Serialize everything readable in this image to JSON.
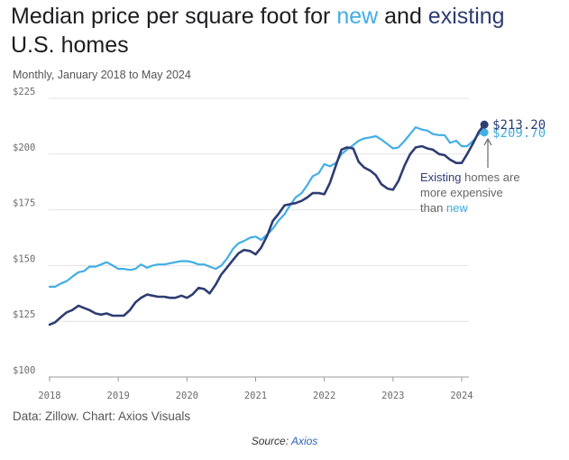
{
  "chart_data": {
    "type": "line",
    "title_parts": [
      "Median price per square foot for ",
      "new",
      " and ",
      "existing",
      " U.S. homes"
    ],
    "subtitle": "Monthly, January 2018 to May 2024",
    "ylim": [
      100,
      225
    ],
    "yticks": [
      100,
      125,
      150,
      175,
      200,
      225
    ],
    "ytick_labels": [
      "$100",
      "$125",
      "$150",
      "$175",
      "$200",
      "$225"
    ],
    "xlim": [
      2018,
      2024.6
    ],
    "xticks": [
      2018,
      2019,
      2020,
      2021,
      2022,
      2023,
      2024
    ],
    "xtick_labels": [
      "2018",
      "2019",
      "2020",
      "2021",
      "2022",
      "2023",
      "2024"
    ],
    "grid": true,
    "series": [
      {
        "name": "new",
        "color": "#42aee5",
        "end_label": "$209.70",
        "points": [
          [
            2018.0,
            140.5
          ],
          [
            2018.08,
            140.5
          ],
          [
            2018.17,
            142
          ],
          [
            2018.25,
            143
          ],
          [
            2018.33,
            145
          ],
          [
            2018.42,
            147
          ],
          [
            2018.5,
            147.5
          ],
          [
            2018.58,
            149.5
          ],
          [
            2018.67,
            149.5
          ],
          [
            2018.75,
            150.5
          ],
          [
            2018.83,
            151.5
          ],
          [
            2018.92,
            150
          ],
          [
            2019.0,
            148.5
          ],
          [
            2019.08,
            148.5
          ],
          [
            2019.17,
            148
          ],
          [
            2019.25,
            148.5
          ],
          [
            2019.33,
            150.5
          ],
          [
            2019.42,
            149
          ],
          [
            2019.5,
            150
          ],
          [
            2019.58,
            150.5
          ],
          [
            2019.67,
            150.5
          ],
          [
            2019.75,
            151
          ],
          [
            2019.83,
            151.5
          ],
          [
            2019.92,
            152
          ],
          [
            2020.0,
            152
          ],
          [
            2020.08,
            151.5
          ],
          [
            2020.17,
            150.5
          ],
          [
            2020.25,
            150.5
          ],
          [
            2020.33,
            149.5
          ],
          [
            2020.42,
            148.5
          ],
          [
            2020.5,
            150
          ],
          [
            2020.58,
            153
          ],
          [
            2020.67,
            157.5
          ],
          [
            2020.75,
            160
          ],
          [
            2020.83,
            161
          ],
          [
            2020.92,
            162.5
          ],
          [
            2021.0,
            163
          ],
          [
            2021.08,
            161.5
          ],
          [
            2021.17,
            164
          ],
          [
            2021.25,
            166.5
          ],
          [
            2021.33,
            170
          ],
          [
            2021.42,
            173
          ],
          [
            2021.5,
            177
          ],
          [
            2021.58,
            180.5
          ],
          [
            2021.67,
            182.5
          ],
          [
            2021.75,
            186
          ],
          [
            2021.83,
            190
          ],
          [
            2021.92,
            191.5
          ],
          [
            2022.0,
            195.5
          ],
          [
            2022.08,
            194.5
          ],
          [
            2022.17,
            196
          ],
          [
            2022.25,
            200
          ],
          [
            2022.33,
            202
          ],
          [
            2022.42,
            204
          ],
          [
            2022.5,
            206
          ],
          [
            2022.58,
            207
          ],
          [
            2022.67,
            207.5
          ],
          [
            2022.75,
            208
          ],
          [
            2022.83,
            206.5
          ],
          [
            2022.92,
            204.5
          ],
          [
            2023.0,
            202.5
          ],
          [
            2023.08,
            203
          ],
          [
            2023.17,
            206
          ],
          [
            2023.25,
            209
          ],
          [
            2023.33,
            212
          ],
          [
            2023.42,
            211
          ],
          [
            2023.5,
            210.5
          ],
          [
            2023.58,
            209
          ],
          [
            2023.67,
            208.5
          ],
          [
            2023.75,
            208.5
          ],
          [
            2023.83,
            205
          ],
          [
            2023.92,
            206
          ],
          [
            2024.0,
            203.5
          ],
          [
            2024.08,
            203.5
          ],
          [
            2024.17,
            206
          ],
          [
            2024.25,
            209
          ],
          [
            2024.33,
            209.7
          ]
        ]
      },
      {
        "name": "existing",
        "color": "#2e3d72",
        "end_label": "$213.20",
        "points": [
          [
            2018.0,
            123.5
          ],
          [
            2018.08,
            124.5
          ],
          [
            2018.17,
            127
          ],
          [
            2018.25,
            129
          ],
          [
            2018.33,
            130
          ],
          [
            2018.42,
            132
          ],
          [
            2018.5,
            131
          ],
          [
            2018.58,
            130
          ],
          [
            2018.67,
            128.5
          ],
          [
            2018.75,
            128
          ],
          [
            2018.83,
            128.5
          ],
          [
            2018.92,
            127.5
          ],
          [
            2019.0,
            127.5
          ],
          [
            2019.08,
            127.5
          ],
          [
            2019.17,
            130
          ],
          [
            2019.25,
            133.5
          ],
          [
            2019.33,
            135.5
          ],
          [
            2019.42,
            137
          ],
          [
            2019.5,
            136.5
          ],
          [
            2019.58,
            136
          ],
          [
            2019.67,
            136
          ],
          [
            2019.75,
            135.5
          ],
          [
            2019.83,
            135.5
          ],
          [
            2019.92,
            136.5
          ],
          [
            2020.0,
            135.5
          ],
          [
            2020.08,
            137
          ],
          [
            2020.17,
            140
          ],
          [
            2020.25,
            139.5
          ],
          [
            2020.33,
            137.5
          ],
          [
            2020.42,
            141.5
          ],
          [
            2020.5,
            146
          ],
          [
            2020.58,
            149
          ],
          [
            2020.67,
            152.5
          ],
          [
            2020.75,
            155.5
          ],
          [
            2020.83,
            157
          ],
          [
            2020.92,
            156.5
          ],
          [
            2021.0,
            155
          ],
          [
            2021.08,
            158
          ],
          [
            2021.17,
            163.5
          ],
          [
            2021.25,
            170
          ],
          [
            2021.33,
            173
          ],
          [
            2021.42,
            177
          ],
          [
            2021.5,
            177.5
          ],
          [
            2021.58,
            178
          ],
          [
            2021.67,
            179
          ],
          [
            2021.75,
            180.5
          ],
          [
            2021.83,
            182.5
          ],
          [
            2021.92,
            182.5
          ],
          [
            2022.0,
            182
          ],
          [
            2022.08,
            187
          ],
          [
            2022.17,
            195
          ],
          [
            2022.25,
            202
          ],
          [
            2022.33,
            203
          ],
          [
            2022.42,
            202.5
          ],
          [
            2022.5,
            196.5
          ],
          [
            2022.58,
            194
          ],
          [
            2022.67,
            192.5
          ],
          [
            2022.75,
            190.5
          ],
          [
            2022.83,
            186.5
          ],
          [
            2022.92,
            184.5
          ],
          [
            2023.0,
            184
          ],
          [
            2023.08,
            188
          ],
          [
            2023.17,
            195
          ],
          [
            2023.25,
            200
          ],
          [
            2023.33,
            203
          ],
          [
            2023.42,
            203.5
          ],
          [
            2023.5,
            202.5
          ],
          [
            2023.58,
            202
          ],
          [
            2023.67,
            200
          ],
          [
            2023.75,
            199.5
          ],
          [
            2023.83,
            197.5
          ],
          [
            2023.92,
            196
          ],
          [
            2024.0,
            196
          ],
          [
            2024.08,
            200
          ],
          [
            2024.17,
            205
          ],
          [
            2024.25,
            210
          ],
          [
            2024.33,
            213.2
          ]
        ]
      }
    ],
    "annotation": {
      "parts": [
        "Existing",
        " homes are",
        "more expensive",
        "than ",
        "new"
      ]
    },
    "source_line": "Data: Zillow. Chart: Axios Visuals"
  },
  "caption": {
    "prefix": "Source: ",
    "link": "Axios"
  }
}
